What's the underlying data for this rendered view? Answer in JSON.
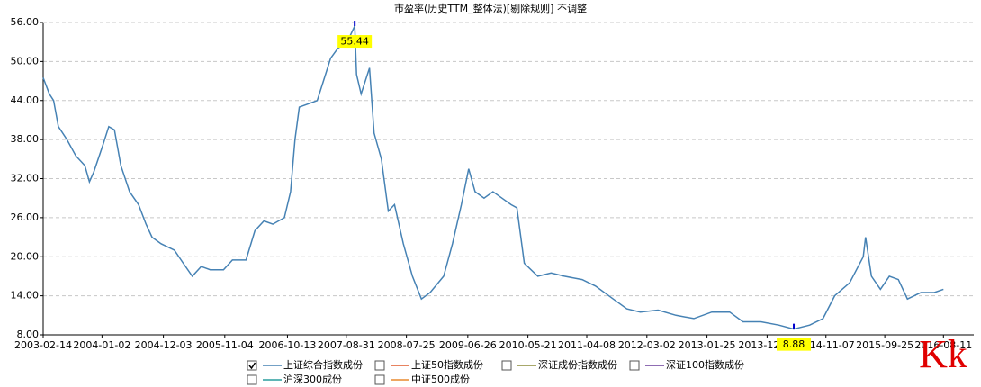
{
  "chart_data": {
    "type": "line",
    "title": "市盈率(历史TTM_整体法)[剔除规则] 不调整",
    "x": [
      "2003-02-14",
      "2003-03-20",
      "2003-04-12",
      "2003-05-08",
      "2003-06-24",
      "2003-08-12",
      "2003-09-30",
      "2003-10-25",
      "2003-11-18",
      "2004-01-05",
      "2004-02-08",
      "2004-03-10",
      "2004-04-14",
      "2004-06-01",
      "2004-07-20",
      "2004-08-30",
      "2004-10-02",
      "2004-11-20",
      "2005-02-01",
      "2005-03-22",
      "2005-05-10",
      "2005-06-28",
      "2005-08-16",
      "2005-10-28",
      "2005-12-16",
      "2006-02-28",
      "2006-04-18",
      "2006-06-06",
      "2006-07-25",
      "2006-09-26",
      "2006-10-30",
      "2006-11-23",
      "2006-12-17",
      "2007-02-04",
      "2007-03-25",
      "2007-04-28",
      "2007-06-06",
      "2007-07-15",
      "2007-09-05",
      "2007-10-16",
      "2007-10-26",
      "2007-11-20",
      "2008-01-05",
      "2008-01-30",
      "2008-03-10",
      "2008-04-17",
      "2008-05-21",
      "2008-07-08",
      "2008-08-27",
      "2008-10-15",
      "2008-12-02",
      "2009-02-14",
      "2009-04-03",
      "2009-05-22",
      "2009-07-01",
      "2009-08-05",
      "2009-09-23",
      "2009-11-11",
      "2009-12-30",
      "2010-02-18",
      "2010-03-22",
      "2010-05-01",
      "2010-07-14",
      "2010-09-25",
      "2010-12-07",
      "2011-03-14",
      "2011-05-26",
      "2011-08-31",
      "2011-11-13",
      "2012-01-26",
      "2012-05-02",
      "2012-08-08",
      "2012-11-14",
      "2013-02-20",
      "2013-05-29",
      "2013-08-10",
      "2013-11-16",
      "2014-02-22",
      "2014-05-15",
      "2014-08-10",
      "2014-10-22",
      "2014-12-25",
      "2015-03-17",
      "2015-05-30",
      "2015-06-12",
      "2015-07-14",
      "2015-09-01",
      "2015-10-20",
      "2015-12-08",
      "2016-01-27",
      "2016-04-10",
      "2016-06-22",
      "2016-08-11"
    ],
    "series": [
      {
        "name": "上证综合指数成份",
        "color": "#4682b4",
        "checked": true,
        "values": [
          47.5,
          45,
          44,
          40,
          38,
          35.5,
          34,
          31.5,
          33,
          37,
          40,
          39.5,
          34,
          30,
          28,
          25,
          23,
          22,
          21,
          19,
          17,
          18.5,
          18,
          18,
          19.5,
          19.5,
          24,
          25.5,
          25,
          26,
          30,
          38,
          43,
          43.5,
          44,
          47,
          50.5,
          52,
          53,
          55.44,
          48,
          45,
          49,
          39,
          35,
          27,
          28,
          22,
          17,
          13.5,
          14.5,
          17,
          22,
          28,
          33.5,
          30,
          29,
          30,
          29,
          28,
          27.5,
          19,
          17,
          17.5,
          17,
          16.5,
          15.5,
          13.5,
          12,
          11.5,
          11.8,
          11,
          10.5,
          11.5,
          11.5,
          10,
          10,
          9.5,
          8.88,
          9.5,
          10.5,
          14,
          16,
          20,
          23,
          17,
          15,
          17,
          16.5,
          13.5,
          14.5,
          14.5,
          15
        ]
      },
      {
        "name": "上证50指数成份",
        "color": "#e05a2b",
        "checked": false
      },
      {
        "name": "深证成份指数成份",
        "color": "#8b8b3a",
        "checked": false
      },
      {
        "name": "深证100指数成份",
        "color": "#6a3d9a",
        "checked": false
      },
      {
        "name": "沪深300成份",
        "color": "#2a9d9d",
        "checked": false
      },
      {
        "name": "中证500成份",
        "color": "#e88a2e",
        "checked": false
      }
    ],
    "xlim": [
      "2003-02-14",
      "2017-01-24"
    ],
    "xticks": [
      "2003-02-14",
      "2004-01-02",
      "2004-12-03",
      "2005-11-04",
      "2006-10-13",
      "2007-08-31",
      "2008-07-25",
      "2009-06-26",
      "2010-05-21",
      "2011-04-08",
      "2012-03-02",
      "2013-01-25",
      "2013-12-20",
      "2014-11-07",
      "2015-09-25",
      "2016-08-11"
    ],
    "ylim": [
      8,
      56
    ],
    "yticks": [
      {
        "value": 8,
        "label": "8.00"
      },
      {
        "value": 14,
        "label": "14.00"
      },
      {
        "value": 20,
        "label": "20.00"
      },
      {
        "value": 26,
        "label": "26.00"
      },
      {
        "value": 32,
        "label": "32.00"
      },
      {
        "value": 38,
        "label": "38.00"
      },
      {
        "value": 44,
        "label": "44.00"
      },
      {
        "value": 50,
        "label": "50.00"
      },
      {
        "value": 56,
        "label": "56.00"
      }
    ],
    "grid": true,
    "annotations": [
      {
        "x": "2007-10-16",
        "value": 55.44
      },
      {
        "x": "2014-05-15",
        "value": 8.88
      }
    ],
    "watermark": "Kk"
  }
}
